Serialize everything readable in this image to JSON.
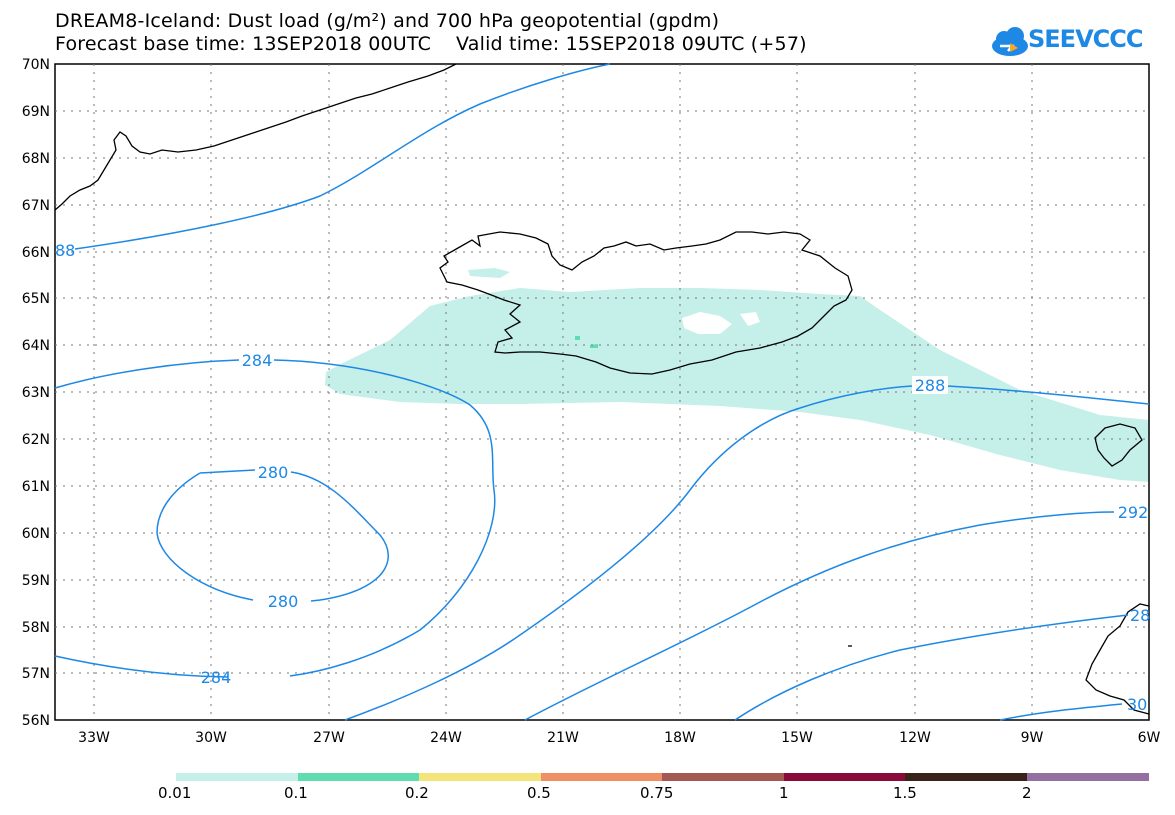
{
  "title": {
    "line1": "DREAM8-Iceland: Dust load (g/m²) and 700 hPa geopotential (gpdm)",
    "line2": "Forecast base time: 13SEP2018 00UTC    Valid time: 15SEP2018 09UTC (+57)"
  },
  "logo": {
    "text": "SEEVCCC",
    "icon": "cloud-icon"
  },
  "lat_labels": [
    "70N",
    "69N",
    "68N",
    "67N",
    "66N",
    "65N",
    "64N",
    "63N",
    "62N",
    "61N",
    "60N",
    "59N",
    "58N",
    "57N",
    "56N"
  ],
  "lon_labels": [
    "33W",
    "30W",
    "27W",
    "24W",
    "21W",
    "18W",
    "15W",
    "12W",
    "9W",
    "6W"
  ],
  "contours": [
    {
      "level": "280",
      "label": "280"
    },
    {
      "level": "284",
      "label": "284"
    },
    {
      "level": "288",
      "label": "288"
    },
    {
      "level": "292",
      "label": "292"
    }
  ],
  "contour_label_fragments": [
    "88",
    "28",
    "30"
  ],
  "colorbar": {
    "colors": [
      "#c5efe9",
      "#5fdcb0",
      "#f3e57a",
      "#ee8f66",
      "#a35851",
      "#8a0b39",
      "#3a2419",
      "#9470a1"
    ],
    "labels": [
      "0.01",
      "0.1",
      "0.2",
      "0.5",
      "0.75",
      "1",
      "1.5",
      "2"
    ]
  },
  "colors": {
    "contour": "#1e88e5",
    "dust_low": "#c5efe9",
    "dust_mid": "#5fdcb0"
  }
}
